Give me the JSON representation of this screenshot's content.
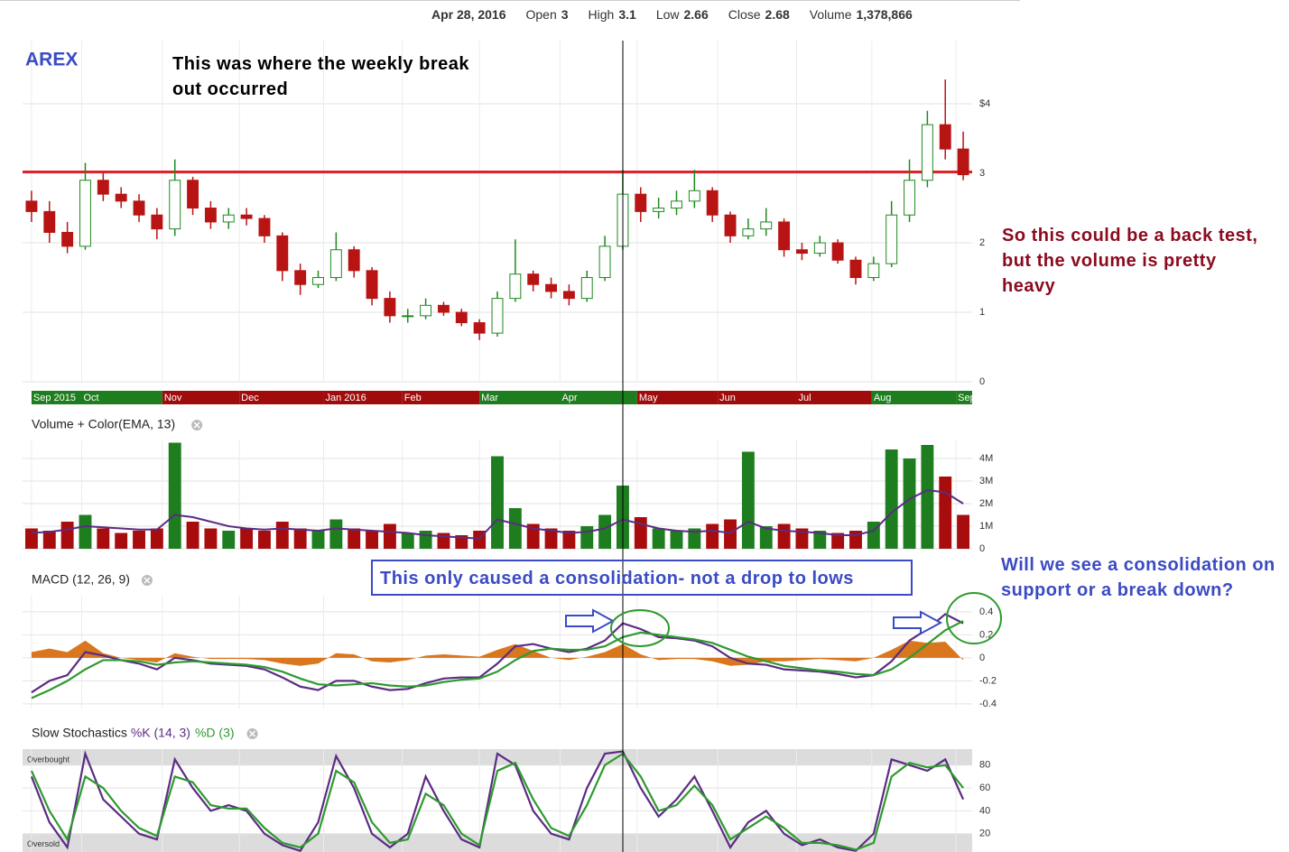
{
  "header": {
    "date": "Apr 28, 2016",
    "items": [
      {
        "label": "Open",
        "value": "3"
      },
      {
        "label": "High",
        "value": "3.1"
      },
      {
        "label": "Low",
        "value": "2.66"
      },
      {
        "label": "Close",
        "value": "2.68"
      },
      {
        "label": "Volume",
        "value": "1,378,866"
      }
    ]
  },
  "annotations": [
    "This was where the weekly break out occurred",
    "So this could be a back test, but the volume is pretty heavy",
    "This only caused a consolidation- not a drop to lows",
    "Will we see a consolidation on support or a break down?"
  ],
  "chart_data": [
    {
      "type": "candlestick",
      "title": "AREX",
      "up_color": "#1e8a1e",
      "down_color": "#b81414",
      "open": [
        2.6,
        2.45,
        2.15,
        1.95,
        2.9,
        2.7,
        2.6,
        2.4,
        2.2,
        2.9,
        2.5,
        2.3,
        2.4,
        2.35,
        2.1,
        1.6,
        1.4,
        1.5,
        1.9,
        1.6,
        1.2,
        0.95,
        0.95,
        1.1,
        1.0,
        0.85,
        0.7,
        1.2,
        1.55,
        1.4,
        1.3,
        1.2,
        1.5,
        1.95,
        2.7,
        2.45,
        2.5,
        2.6,
        2.75,
        2.4,
        2.1,
        2.2,
        2.3,
        1.9,
        1.85,
        2.0,
        1.75,
        1.5,
        1.7,
        2.4,
        2.9,
        3.7,
        3.35
      ],
      "high": [
        2.75,
        2.6,
        2.3,
        3.15,
        3.0,
        2.8,
        2.7,
        2.5,
        3.2,
        2.95,
        2.6,
        2.5,
        2.5,
        2.4,
        2.15,
        1.7,
        1.6,
        2.15,
        1.95,
        1.65,
        1.3,
        1.05,
        1.2,
        1.15,
        1.05,
        0.9,
        1.3,
        2.05,
        1.6,
        1.5,
        1.4,
        1.6,
        2.1,
        3.05,
        2.8,
        2.65,
        2.75,
        3.05,
        2.8,
        2.45,
        2.35,
        2.5,
        2.35,
        2.0,
        2.1,
        2.05,
        1.8,
        1.8,
        2.6,
        3.2,
        3.9,
        4.35,
        3.6
      ],
      "low": [
        2.3,
        2.0,
        1.85,
        1.9,
        2.6,
        2.5,
        2.3,
        2.05,
        2.1,
        2.4,
        2.2,
        2.2,
        2.25,
        2.0,
        1.45,
        1.25,
        1.35,
        1.45,
        1.5,
        1.1,
        0.85,
        0.85,
        0.9,
        0.95,
        0.8,
        0.6,
        0.65,
        1.15,
        1.3,
        1.2,
        1.1,
        1.15,
        1.45,
        1.9,
        2.3,
        2.35,
        2.4,
        2.5,
        2.3,
        2.0,
        2.05,
        2.1,
        1.8,
        1.75,
        1.8,
        1.7,
        1.4,
        1.45,
        1.65,
        2.3,
        2.8,
        3.2,
        2.9
      ],
      "close": [
        2.45,
        2.15,
        1.95,
        2.9,
        2.7,
        2.6,
        2.4,
        2.2,
        2.9,
        2.5,
        2.3,
        2.4,
        2.35,
        2.1,
        1.6,
        1.4,
        1.5,
        1.9,
        1.6,
        1.2,
        0.95,
        0.95,
        1.1,
        1.0,
        0.85,
        0.7,
        1.2,
        1.55,
        1.4,
        1.3,
        1.2,
        1.5,
        1.95,
        2.7,
        2.45,
        2.5,
        2.6,
        2.75,
        2.4,
        2.1,
        2.2,
        2.3,
        1.9,
        1.85,
        2.0,
        1.75,
        1.5,
        1.7,
        2.4,
        2.9,
        3.7,
        3.35,
        2.98
      ],
      "xlim": [
        -0.5,
        52.5
      ],
      "xticks": [
        {
          "value": 0,
          "label": "Sep 2015"
        },
        {
          "value": 2.8,
          "label": "Oct"
        },
        {
          "value": 7.3,
          "label": "Nov"
        },
        {
          "value": 11.6,
          "label": "Dec"
        },
        {
          "value": 16.3,
          "label": "Jan 2016"
        },
        {
          "value": 20.7,
          "label": "Feb"
        },
        {
          "value": 25,
          "label": "Mar"
        },
        {
          "value": 29.5,
          "label": "Apr"
        },
        {
          "value": 33.8,
          "label": "May"
        },
        {
          "value": 38.3,
          "label": "Jun"
        },
        {
          "value": 42.7,
          "label": "Jul"
        },
        {
          "value": 46.9,
          "label": "Aug"
        },
        {
          "value": 51.6,
          "label": "Sep"
        }
      ],
      "month_colors": [
        "#1e7d1e",
        "#1e7d1e",
        "#a00c0c",
        "#a00c0c",
        "#a00c0c",
        "#a00c0c",
        "#1e7d1e",
        "#1e7d1e",
        "#a00c0c",
        "#a00c0c",
        "#a00c0c",
        "#1e7d1e",
        "#1e7d1e"
      ],
      "ylim": [
        0,
        4.91
      ],
      "yticks": [
        0,
        1,
        2,
        3,
        {
          "value": 4,
          "label": "$4"
        }
      ],
      "grid": true,
      "reference_line": {
        "value": 3.02,
        "color": "#e0202a"
      }
    },
    {
      "type": "bar",
      "title": "Volume + Color(EMA, 13)",
      "up_color": "#1e7d1e",
      "down_color": "#a80c0c",
      "values": [
        0.9,
        0.8,
        1.2,
        1.5,
        0.9,
        0.7,
        0.8,
        0.9,
        4.7,
        1.2,
        0.9,
        0.8,
        0.9,
        0.8,
        1.2,
        0.9,
        0.8,
        1.3,
        0.9,
        0.8,
        1.1,
        0.7,
        0.8,
        0.7,
        0.6,
        0.8,
        4.1,
        1.8,
        1.1,
        0.9,
        0.8,
        1.0,
        1.5,
        2.8,
        1.4,
        0.9,
        0.8,
        0.9,
        1.1,
        1.3,
        4.3,
        1.0,
        1.1,
        0.9,
        0.8,
        0.7,
        0.8,
        1.2,
        4.4,
        4.0,
        4.6,
        3.2,
        1.5
      ],
      "ema": {
        "color": "#5b2c83",
        "values": [
          0.7,
          0.75,
          0.85,
          1.0,
          0.95,
          0.9,
          0.85,
          0.85,
          1.5,
          1.4,
          1.2,
          1.0,
          0.9,
          0.85,
          0.9,
          0.85,
          0.8,
          0.9,
          0.85,
          0.8,
          0.75,
          0.7,
          0.6,
          0.55,
          0.5,
          0.45,
          1.3,
          1.1,
          0.9,
          0.8,
          0.7,
          0.75,
          0.9,
          1.3,
          1.1,
          0.9,
          0.8,
          0.75,
          0.8,
          0.7,
          1.2,
          0.9,
          0.8,
          0.75,
          0.7,
          0.6,
          0.6,
          0.8,
          1.6,
          2.2,
          2.6,
          2.5,
          2.0
        ]
      },
      "ylim": [
        0,
        4.8
      ],
      "yticks": [
        0,
        {
          "value": 1,
          "label": "1M"
        },
        {
          "value": 2,
          "label": "2M"
        },
        {
          "value": 3,
          "label": "3M"
        },
        {
          "value": 4,
          "label": "4M"
        }
      ],
      "grid": true
    },
    {
      "type": "line",
      "title": "MACD (12, 26, 9)",
      "series": [
        {
          "style": "area",
          "color": "#d9771e",
          "values": [
            0.05,
            0.08,
            0.05,
            0.15,
            0.04,
            0,
            -0.02,
            -0.04,
            0.04,
            0.01,
            -0.01,
            -0.01,
            -0.01,
            -0.02,
            -0.05,
            -0.07,
            -0.05,
            0.04,
            0.03,
            -0.03,
            -0.04,
            -0.02,
            0.02,
            0.03,
            0.02,
            0.01,
            0.07,
            0.12,
            0.06,
            0,
            -0.02,
            0.01,
            0.05,
            0.12,
            0.03,
            -0.02,
            -0.01,
            -0.01,
            -0.03,
            -0.07,
            -0.06,
            -0.03,
            -0.03,
            -0.02,
            -0.01,
            -0.02,
            -0.03,
            0,
            0.07,
            0.15,
            0.13,
            0.14,
            -0.02
          ]
        },
        {
          "style": "line",
          "color": "#5b2c83",
          "values": [
            -0.3,
            -0.2,
            -0.15,
            0.05,
            0.02,
            -0.02,
            -0.05,
            -0.1,
            0.0,
            -0.02,
            -0.05,
            -0.06,
            -0.07,
            -0.1,
            -0.17,
            -0.25,
            -0.28,
            -0.2,
            -0.2,
            -0.25,
            -0.28,
            -0.27,
            -0.22,
            -0.18,
            -0.17,
            -0.17,
            -0.05,
            0.1,
            0.12,
            0.08,
            0.05,
            0.08,
            0.15,
            0.3,
            0.25,
            0.18,
            0.17,
            0.15,
            0.1,
            0.0,
            -0.05,
            -0.06,
            -0.1,
            -0.11,
            -0.12,
            -0.14,
            -0.17,
            -0.15,
            -0.03,
            0.15,
            0.25,
            0.38,
            0.3
          ]
        },
        {
          "style": "line",
          "color": "#2e9a2e",
          "values": [
            -0.35,
            -0.28,
            -0.2,
            -0.1,
            -0.02,
            -0.02,
            -0.03,
            -0.06,
            -0.04,
            -0.03,
            -0.04,
            -0.05,
            -0.06,
            -0.08,
            -0.12,
            -0.18,
            -0.23,
            -0.24,
            -0.23,
            -0.22,
            -0.24,
            -0.25,
            -0.24,
            -0.21,
            -0.19,
            -0.18,
            -0.12,
            -0.02,
            0.06,
            0.08,
            0.07,
            0.07,
            0.1,
            0.18,
            0.22,
            0.2,
            0.18,
            0.16,
            0.13,
            0.07,
            0.01,
            -0.03,
            -0.07,
            -0.09,
            -0.11,
            -0.12,
            -0.14,
            -0.15,
            -0.1,
            0.0,
            0.12,
            0.24,
            0.32
          ]
        }
      ],
      "ylim": [
        -0.44,
        0.54
      ],
      "yticks": [
        -0.4,
        -0.2,
        0,
        0.2,
        0.4
      ],
      "grid": true
    },
    {
      "type": "line",
      "title": "Slow Stochastics",
      "bands": [
        {
          "label": "Overbought",
          "value": 80,
          "side": "above"
        },
        {
          "label": "Oversold",
          "value": 20,
          "side": "below"
        }
      ],
      "series": [
        {
          "name": "%K (14, 3)",
          "style": "line",
          "color": "#5b2c83",
          "values": [
            70,
            30,
            8,
            90,
            50,
            35,
            20,
            15,
            85,
            60,
            40,
            45,
            40,
            20,
            10,
            5,
            30,
            88,
            60,
            20,
            8,
            20,
            70,
            40,
            15,
            8,
            90,
            80,
            40,
            20,
            15,
            60,
            90,
            92,
            60,
            35,
            50,
            70,
            40,
            8,
            30,
            40,
            20,
            10,
            15,
            8,
            5,
            20,
            85,
            80,
            75,
            85,
            50
          ]
        },
        {
          "name": "%D (3)",
          "style": "line",
          "color": "#2e9a2e",
          "values": [
            75,
            40,
            15,
            70,
            60,
            40,
            25,
            18,
            70,
            65,
            45,
            42,
            42,
            25,
            12,
            8,
            20,
            75,
            65,
            30,
            12,
            15,
            55,
            45,
            20,
            10,
            75,
            82,
            50,
            25,
            18,
            45,
            80,
            90,
            70,
            40,
            45,
            62,
            45,
            15,
            25,
            35,
            25,
            12,
            12,
            10,
            6,
            12,
            70,
            82,
            78,
            80,
            60
          ]
        }
      ],
      "ylim": [
        4,
        94
      ],
      "yticks": [
        20,
        40,
        60,
        80
      ],
      "grid": true
    }
  ]
}
